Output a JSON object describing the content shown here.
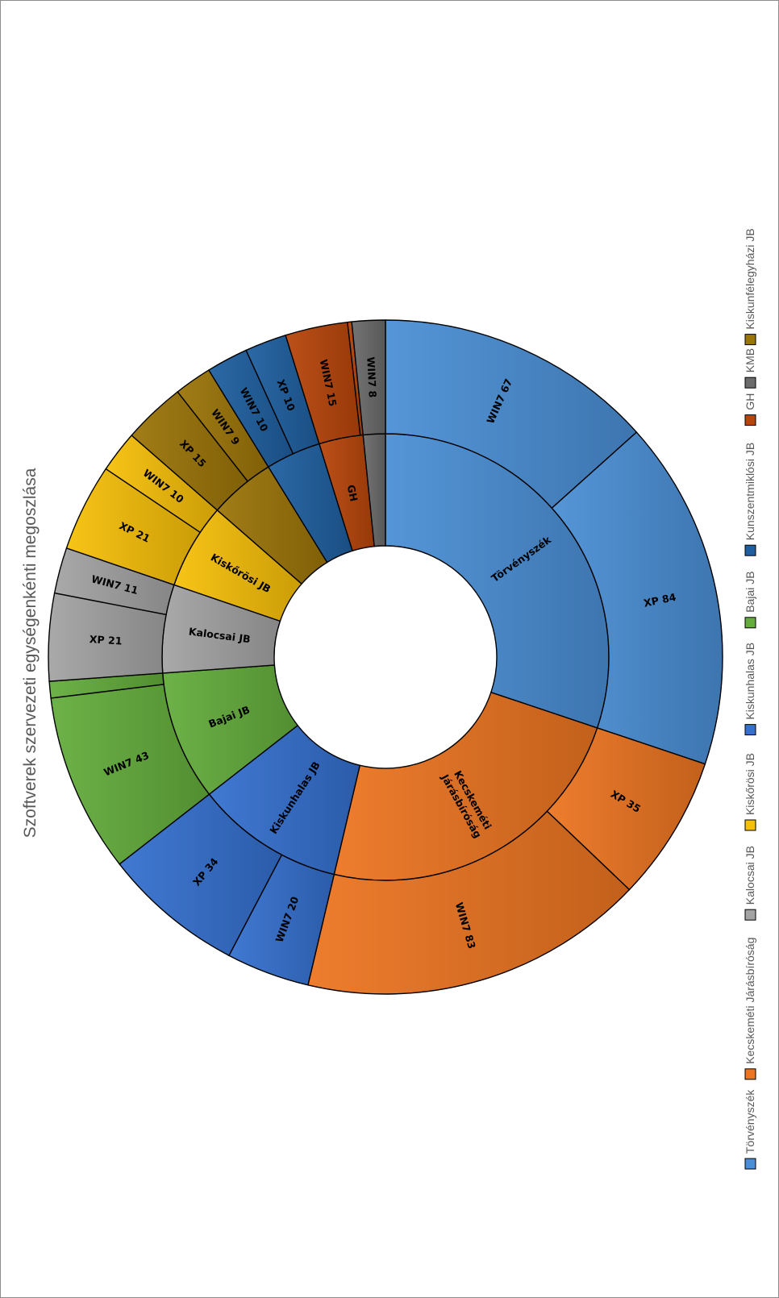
{
  "chart_data": {
    "type": "sunburst",
    "title": "Szoftverek szervezeti egységenkénti megoszlása",
    "legend_position": "right",
    "series": [
      {
        "name": "Törvényszék",
        "color": "#4a8fd6",
        "children": [
          {
            "label": "WIN7 67",
            "value": 67
          },
          {
            "label": "XP 84",
            "value": 84
          }
        ]
      },
      {
        "name": "Kecskeméti Járásbíróság",
        "color": "#ed7521",
        "children": [
          {
            "label": "XP 35",
            "value": 35
          },
          {
            "label": "WIN7 83",
            "value": 83
          }
        ]
      },
      {
        "name": "Kiskunhalas JB",
        "color": "#3570cf",
        "children": [
          {
            "label": "WIN7 20",
            "value": 20
          },
          {
            "label": "XP 34",
            "value": 34
          }
        ]
      },
      {
        "name": "Bajai JB",
        "color": "#64ad3c",
        "children": [
          {
            "label": "WIN7 43",
            "value": 43
          },
          {
            "label": "",
            "value": 4
          }
        ]
      },
      {
        "name": "Kalocsai JB",
        "color": "#a3a3a3",
        "children": [
          {
            "label": "XP 21",
            "value": 21
          },
          {
            "label": "WIN7 11",
            "value": 11
          }
        ]
      },
      {
        "name": "Kiskőrösi JB",
        "color": "#f7c008",
        "children": [
          {
            "label": "XP 21",
            "value": 21
          },
          {
            "label": "WIN7 10",
            "value": 10
          }
        ]
      },
      {
        "name": "Kiskunfélegyházi JB",
        "color": "#9c7508",
        "children": [
          {
            "label": "XP 15",
            "value": 15
          },
          {
            "label": "WIN7 9",
            "value": 9
          }
        ]
      },
      {
        "name": "Kunszentmiklósi JB",
        "color": "#1f5fa0",
        "children": [
          {
            "label": "WIN7 10",
            "value": 10
          },
          {
            "label": "XP 10",
            "value": 10
          }
        ]
      },
      {
        "name": "GH",
        "color": "#b8450a",
        "children": [
          {
            "label": "WIN7 15",
            "value": 15
          },
          {
            "label": "",
            "value": 1
          }
        ]
      },
      {
        "name": "KMB",
        "color": "#6b6b6b",
        "children": [
          {
            "label": "WIN7 8",
            "value": 8
          }
        ]
      }
    ],
    "inner_labels": {
      "Törvényszék": "Törvényszék",
      "Kecskeméti Járásbíróság": "Kecskeméti Járásbíróság",
      "Kiskunhalas JB": "Kiskunhalas JB",
      "Bajai JB": "Bajai JB",
      "Kalocsai JB": "Kalocsai JB",
      "Kiskőrösi JB": "Kiskőrösi JB",
      "Kunszentmiklósi JB": "",
      "Kiskunfélegyházi JB": "",
      "GH": "GH",
      "KMB": ""
    },
    "legend": [
      "Törvényszék",
      "Kecskeméti Járásbíróság",
      "Kalocsai JB",
      "Kiskőrösi JB",
      "Kiskunhalas JB",
      "Bajai JB",
      "Kunszentmiklósi JB",
      "GH",
      "KMB",
      "Kiskunfélegyházi JB"
    ]
  }
}
